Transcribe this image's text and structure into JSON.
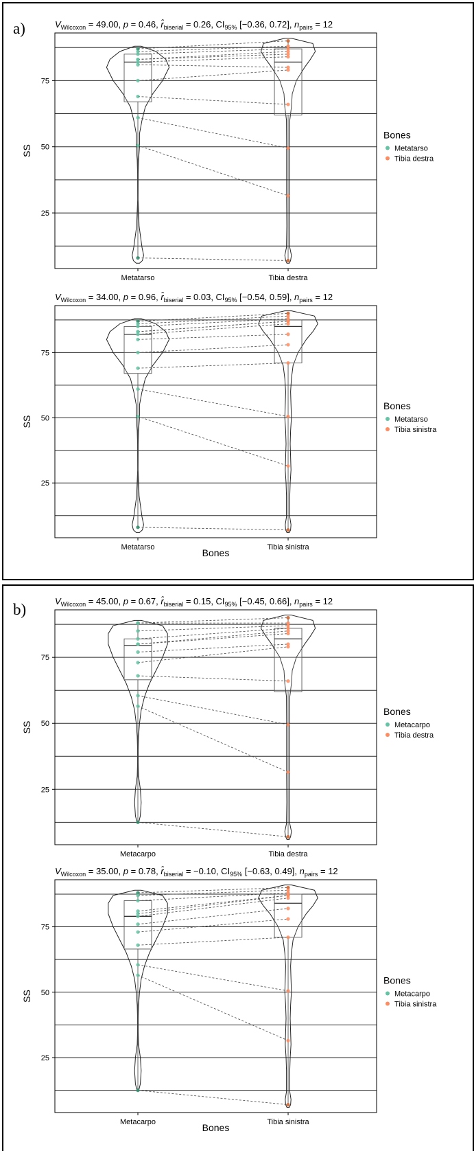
{
  "panels": [
    {
      "label": "a)"
    },
    {
      "label": "b)"
    }
  ],
  "colors": {
    "bone_a": "#66c2a5",
    "bone_b": "#fc8d62",
    "bone_a_dark": "#2e8b6a",
    "bone_b_dark": "#c8632f"
  },
  "chart_data": [
    {
      "type": "violin",
      "title": {
        "v": "49.00",
        "p": "0.46",
        "r": "0.26",
        "ci": "[−0.36, 0.72]",
        "n": "12"
      },
      "xlabel": "",
      "ylabel": "SS",
      "ylim": [
        4,
        93
      ],
      "yticks": [
        25,
        50,
        75
      ],
      "hgrid": [
        12.5,
        25,
        37.5,
        50,
        62.5,
        75,
        87.5
      ],
      "categories": [
        "Metatarso",
        "Tibia destra"
      ],
      "legend": {
        "title": "Bones",
        "items": [
          "Metatarso",
          "Tibia destra"
        ]
      },
      "series": [
        {
          "name": "Metatarso",
          "values": [
            87,
            86,
            85,
            83,
            83,
            82,
            81,
            75,
            69,
            61,
            50.5,
            8
          ],
          "box": [
            67,
            82,
            85
          ],
          "violin": [
            [
              88,
              4
            ],
            [
              86,
              22
            ],
            [
              83,
              34
            ],
            [
              80,
              38
            ],
            [
              75,
              30
            ],
            [
              70,
              18
            ],
            [
              65,
              9
            ],
            [
              60,
              5
            ],
            [
              55,
              2
            ],
            [
              50,
              2
            ],
            [
              45,
              0.8
            ],
            [
              40,
              0.4
            ],
            [
              30,
              0.3
            ],
            [
              20,
              1.5
            ],
            [
              12,
              5
            ],
            [
              9,
              7
            ],
            [
              7,
              5.5
            ],
            [
              6,
              2
            ]
          ]
        },
        {
          "name": "Tibia destra",
          "values": [
            90,
            88,
            87,
            86,
            85,
            84,
            80,
            79,
            66,
            49.5,
            31.5,
            7
          ],
          "box": [
            62,
            82,
            87
          ],
          "violin": [
            [
              91,
              4
            ],
            [
              89,
              30
            ],
            [
              86,
              33
            ],
            [
              83,
              27
            ],
            [
              80,
              20
            ],
            [
              75,
              10
            ],
            [
              70,
              5
            ],
            [
              65,
              4
            ],
            [
              60,
              2
            ],
            [
              50,
              1.8
            ],
            [
              40,
              1.8
            ],
            [
              30,
              1.8
            ],
            [
              20,
              1.6
            ],
            [
              12,
              2
            ],
            [
              9,
              4
            ],
            [
              7,
              3
            ],
            [
              6,
              1.5
            ]
          ]
        }
      ]
    },
    {
      "type": "violin",
      "title": {
        "v": "34.00",
        "p": "0.96",
        "r": "0.03",
        "ci": "[−0.54, 0.59]",
        "n": "12"
      },
      "xlabel": "Bones",
      "ylabel": "SS",
      "ylim": [
        4,
        93
      ],
      "yticks": [
        25,
        50,
        75
      ],
      "hgrid": [
        12.5,
        25,
        37.5,
        50,
        62.5,
        75,
        87.5
      ],
      "categories": [
        "Metatarso",
        "Tibia sinistra"
      ],
      "legend": {
        "title": "Bones",
        "items": [
          "Metatarso",
          "Tibia sinistra"
        ]
      },
      "series": [
        {
          "name": "Metatarso",
          "values": [
            87,
            86,
            85,
            83,
            83,
            82,
            80,
            75,
            69,
            61,
            50.5,
            8
          ],
          "box": [
            67,
            82,
            85
          ],
          "violin": [
            [
              88,
              4
            ],
            [
              86,
              22
            ],
            [
              83,
              34
            ],
            [
              80,
              38
            ],
            [
              75,
              30
            ],
            [
              70,
              18
            ],
            [
              65,
              9
            ],
            [
              60,
              5
            ],
            [
              55,
              2
            ],
            [
              50,
              2
            ],
            [
              45,
              0.8
            ],
            [
              40,
              0.4
            ],
            [
              30,
              0.3
            ],
            [
              20,
              1.5
            ],
            [
              12,
              5
            ],
            [
              9,
              7
            ],
            [
              7,
              5.5
            ],
            [
              6,
              2
            ]
          ]
        },
        {
          "name": "Tibia sinistra",
          "values": [
            90,
            89,
            88,
            87,
            87,
            86,
            82,
            78,
            71,
            50.5,
            31.5,
            7
          ],
          "box": [
            71,
            85,
            87.5
          ],
          "violin": [
            [
              91,
              4
            ],
            [
              89,
              32
            ],
            [
              86,
              36
            ],
            [
              83,
              30
            ],
            [
              80,
              22
            ],
            [
              75,
              12
            ],
            [
              70,
              6
            ],
            [
              65,
              4
            ],
            [
              60,
              3
            ],
            [
              55,
              3.5
            ],
            [
              50,
              4
            ],
            [
              45,
              3
            ],
            [
              40,
              2.5
            ],
            [
              35,
              3
            ],
            [
              30,
              3.5
            ],
            [
              25,
              2.5
            ],
            [
              20,
              2
            ],
            [
              12,
              2
            ],
            [
              9,
              3.5
            ],
            [
              7,
              3
            ],
            [
              6,
              1.5
            ]
          ]
        }
      ]
    },
    {
      "type": "violin",
      "title": {
        "v": "45.00",
        "p": "0.67",
        "r": "0.15",
        "ci": "[−0.45, 0.66]",
        "n": "12"
      },
      "xlabel": "",
      "ylabel": "SS",
      "ylim": [
        4,
        93
      ],
      "yticks": [
        25,
        50,
        75
      ],
      "hgrid": [
        12.5,
        25,
        37.5,
        50,
        62.5,
        75,
        87.5
      ],
      "categories": [
        "Metacarpo",
        "Tibia destra"
      ],
      "legend": {
        "title": "Bones",
        "items": [
          "Metacarpo",
          "Tibia destra"
        ]
      },
      "series": [
        {
          "name": "Metacarpo",
          "values": [
            88,
            88,
            85,
            82,
            80,
            80,
            77,
            73,
            68,
            60.5,
            56.5,
            12.5
          ],
          "box": [
            66.5,
            79.5,
            82
          ],
          "violin": [
            [
              89,
              4
            ],
            [
              87,
              30
            ],
            [
              84,
              36
            ],
            [
              80,
              36
            ],
            [
              75,
              30
            ],
            [
              70,
              22
            ],
            [
              65,
              14
            ],
            [
              60,
              8
            ],
            [
              55,
              4
            ],
            [
              50,
              2
            ],
            [
              45,
              0.8
            ],
            [
              40,
              0.4
            ],
            [
              35,
              0.4
            ],
            [
              30,
              0.8
            ],
            [
              25,
              3
            ],
            [
              20,
              4
            ],
            [
              15,
              3
            ],
            [
              13,
              1.5
            ]
          ]
        },
        {
          "name": "Tibia destra",
          "values": [
            90,
            88,
            87,
            86,
            85,
            84,
            80,
            79,
            66,
            49.5,
            31.5,
            7
          ],
          "box": [
            62,
            82,
            86
          ],
          "violin": [
            [
              91,
              4
            ],
            [
              89,
              30
            ],
            [
              86,
              33
            ],
            [
              83,
              27
            ],
            [
              80,
              20
            ],
            [
              75,
              10
            ],
            [
              70,
              5
            ],
            [
              65,
              4
            ],
            [
              60,
              2
            ],
            [
              50,
              1.8
            ],
            [
              40,
              1.8
            ],
            [
              30,
              1.8
            ],
            [
              20,
              1.6
            ],
            [
              12,
              2
            ],
            [
              9,
              4
            ],
            [
              7,
              3
            ],
            [
              6,
              1.5
            ]
          ]
        }
      ]
    },
    {
      "type": "violin",
      "title": {
        "v": "35.00",
        "p": "0.78",
        "r": "−0.10",
        "ci": "[−0.63, 0.49]",
        "n": "12"
      },
      "xlabel": "Bones",
      "ylabel": "SS",
      "ylim": [
        4,
        93
      ],
      "yticks": [
        25,
        50,
        75
      ],
      "hgrid": [
        12.5,
        25,
        37.5,
        50,
        62.5,
        75,
        87.5
      ],
      "categories": [
        "Metacarpo",
        "Tibia sinistra"
      ],
      "legend": {
        "title": "Bones",
        "items": [
          "Metacarpo",
          "Tibia sinistra"
        ]
      },
      "series": [
        {
          "name": "Metacarpo",
          "values": [
            88,
            87,
            85,
            81,
            80,
            79,
            76,
            73,
            68,
            60.5,
            56.5,
            12.5
          ],
          "box": [
            66.5,
            79,
            85
          ],
          "violin": [
            [
              89,
              4
            ],
            [
              87,
              30
            ],
            [
              84,
              36
            ],
            [
              80,
              36
            ],
            [
              75,
              30
            ],
            [
              70,
              22
            ],
            [
              65,
              14
            ],
            [
              60,
              8
            ],
            [
              55,
              4
            ],
            [
              50,
              2
            ],
            [
              45,
              0.8
            ],
            [
              40,
              0.4
            ],
            [
              35,
              0.4
            ],
            [
              30,
              0.8
            ],
            [
              25,
              3
            ],
            [
              20,
              4
            ],
            [
              15,
              3
            ],
            [
              13,
              1.5
            ]
          ]
        },
        {
          "name": "Tibia sinistra",
          "values": [
            90,
            89,
            88,
            87,
            87,
            86,
            82,
            78,
            71,
            50.5,
            31.5,
            7
          ],
          "box": [
            71,
            84,
            87.5
          ],
          "violin": [
            [
              91,
              4
            ],
            [
              89,
              32
            ],
            [
              86,
              36
            ],
            [
              83,
              30
            ],
            [
              80,
              22
            ],
            [
              75,
              12
            ],
            [
              70,
              6
            ],
            [
              65,
              4
            ],
            [
              60,
              3
            ],
            [
              55,
              3.5
            ],
            [
              50,
              4
            ],
            [
              45,
              3
            ],
            [
              40,
              2.5
            ],
            [
              35,
              3
            ],
            [
              30,
              3.5
            ],
            [
              25,
              2.5
            ],
            [
              20,
              2
            ],
            [
              12,
              2
            ],
            [
              9,
              3.5
            ],
            [
              7,
              3
            ],
            [
              6,
              1.5
            ]
          ]
        }
      ]
    }
  ]
}
